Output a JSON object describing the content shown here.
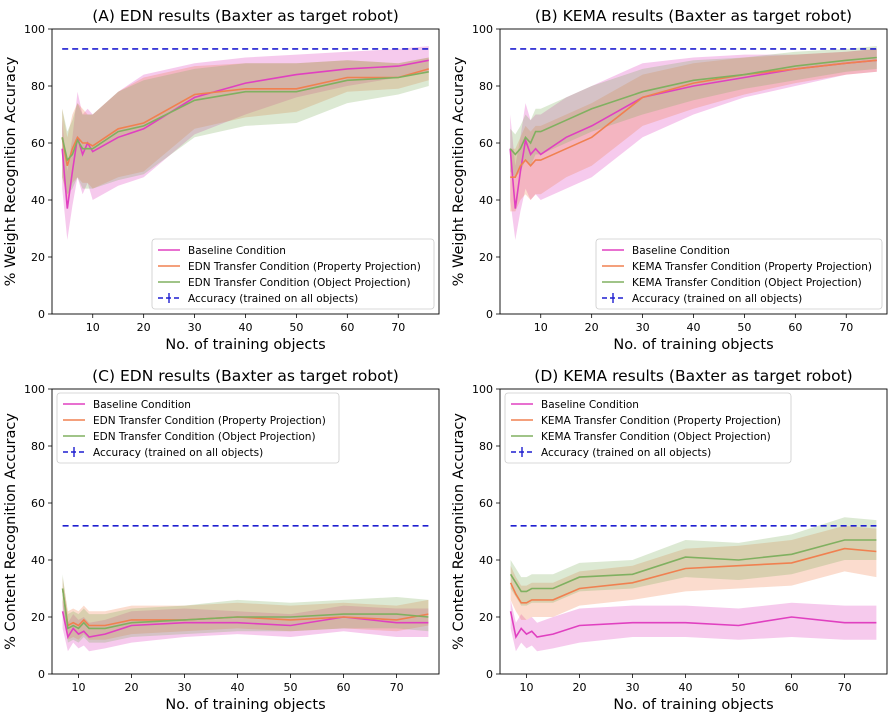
{
  "chart_data": [
    {
      "type": "line",
      "panel": "A",
      "title": "(A) EDN results (Baxter as target robot)",
      "xlabel": "No. of training objects",
      "ylabel": "% Weight Recognition Accuracy",
      "xlim": [
        2,
        78
      ],
      "ylim": [
        0,
        100
      ],
      "xticks": [
        10,
        20,
        30,
        40,
        50,
        60,
        70
      ],
      "yticks": [
        0,
        20,
        40,
        60,
        80,
        100
      ],
      "legend_position": "lower-right",
      "x": [
        4,
        5,
        6,
        7,
        8,
        9,
        10,
        15,
        20,
        30,
        40,
        50,
        60,
        70,
        76
      ],
      "reference": {
        "name": "Accuracy (trained on all objects)",
        "value": 93,
        "x_range": [
          4,
          76
        ],
        "color": "#1f1fd0"
      },
      "series": [
        {
          "name": "Baseline Condition",
          "color": "#e040c0",
          "values": [
            58,
            37,
            50,
            62,
            56,
            60,
            57,
            62,
            65,
            76,
            81,
            84,
            86,
            87,
            89
          ],
          "lower": [
            44,
            26,
            38,
            48,
            42,
            46,
            40,
            45,
            48,
            63,
            70,
            76,
            80,
            83,
            85
          ],
          "upper": [
            68,
            50,
            62,
            78,
            70,
            72,
            70,
            78,
            84,
            88,
            90,
            91,
            92,
            93,
            94
          ]
        },
        {
          "name": "EDN Transfer Condition (Property Projection)",
          "color": "#f08050",
          "values": [
            62,
            52,
            58,
            62,
            60,
            60,
            59,
            65,
            67,
            77,
            79,
            79,
            83,
            83,
            86
          ],
          "lower": [
            48,
            40,
            46,
            48,
            46,
            46,
            44,
            48,
            50,
            65,
            69,
            71,
            78,
            79,
            82
          ],
          "upper": [
            72,
            62,
            70,
            74,
            72,
            70,
            70,
            78,
            83,
            87,
            88,
            88,
            89,
            88,
            90
          ]
        },
        {
          "name": "EDN Transfer Condition (Object Projection)",
          "color": "#80b060",
          "values": [
            62,
            54,
            56,
            61,
            58,
            58,
            58,
            64,
            66,
            75,
            78,
            78,
            82,
            83,
            85
          ],
          "lower": [
            48,
            42,
            44,
            48,
            44,
            44,
            44,
            47,
            49,
            62,
            66,
            67,
            74,
            77,
            80
          ],
          "upper": [
            72,
            64,
            68,
            74,
            70,
            70,
            70,
            78,
            82,
            86,
            88,
            88,
            89,
            88,
            90
          ]
        }
      ]
    },
    {
      "type": "line",
      "panel": "B",
      "title": "(B) KEMA results (Baxter as target robot)",
      "xlabel": "No. of training objects",
      "ylabel": "% Weight Recognition Accuracy",
      "xlim": [
        2,
        78
      ],
      "ylim": [
        0,
        100
      ],
      "xticks": [
        10,
        20,
        30,
        40,
        50,
        60,
        70
      ],
      "yticks": [
        0,
        20,
        40,
        60,
        80,
        100
      ],
      "legend_position": "lower-right",
      "x": [
        4,
        5,
        6,
        7,
        8,
        9,
        10,
        15,
        20,
        30,
        40,
        50,
        60,
        70,
        76
      ],
      "reference": {
        "name": "Accuracy (trained on all objects)",
        "value": 93,
        "x_range": [
          4,
          76
        ],
        "color": "#1f1fd0"
      },
      "series": [
        {
          "name": "Baseline Condition",
          "color": "#e040c0",
          "values": [
            58,
            37,
            50,
            61,
            56,
            58,
            56,
            62,
            66,
            76,
            80,
            83,
            86,
            88,
            89
          ],
          "lower": [
            40,
            26,
            36,
            44,
            40,
            42,
            40,
            44,
            48,
            62,
            70,
            76,
            80,
            84,
            85
          ],
          "upper": [
            70,
            52,
            62,
            74,
            68,
            70,
            70,
            76,
            80,
            88,
            90,
            91,
            91,
            92,
            93
          ]
        },
        {
          "name": "KEMA Transfer Condition (Property Projection)",
          "color": "#f08050",
          "values": [
            48,
            48,
            52,
            54,
            52,
            54,
            54,
            58,
            62,
            76,
            81,
            84,
            86,
            88,
            89
          ],
          "lower": [
            36,
            36,
            40,
            42,
            40,
            42,
            42,
            48,
            52,
            66,
            72,
            77,
            81,
            84,
            85
          ],
          "upper": [
            58,
            58,
            62,
            66,
            64,
            66,
            66,
            70,
            74,
            84,
            88,
            90,
            91,
            92,
            93
          ]
        },
        {
          "name": "KEMA Transfer Condition (Object Projection)",
          "color": "#80b060",
          "values": [
            58,
            56,
            58,
            62,
            60,
            64,
            64,
            68,
            72,
            78,
            82,
            84,
            87,
            89,
            90
          ],
          "lower": [
            50,
            48,
            50,
            54,
            52,
            56,
            56,
            60,
            64,
            70,
            75,
            79,
            82,
            85,
            86
          ],
          "upper": [
            65,
            63,
            66,
            70,
            68,
            72,
            72,
            76,
            80,
            86,
            89,
            90,
            92,
            93,
            94
          ]
        }
      ]
    },
    {
      "type": "line",
      "panel": "C",
      "title": "(C) EDN results (Baxter as target robot)",
      "xlabel": "No. of training objects",
      "ylabel": "% Content Recognition Accuracy",
      "xlim": [
        5,
        78
      ],
      "ylim": [
        0,
        100
      ],
      "xticks": [
        10,
        20,
        30,
        40,
        50,
        60,
        70
      ],
      "yticks": [
        0,
        20,
        40,
        60,
        80,
        100
      ],
      "legend_position": "upper-left",
      "x": [
        7,
        8,
        9,
        10,
        11,
        12,
        15,
        20,
        30,
        40,
        50,
        60,
        70,
        76
      ],
      "reference": {
        "name": "Accuracy (trained on all objects)",
        "value": 52,
        "x_range": [
          7,
          76
        ],
        "color": "#1f1fd0"
      },
      "series": [
        {
          "name": "Baseline Condition",
          "color": "#e040c0",
          "values": [
            22,
            13,
            16,
            14,
            15,
            13,
            14,
            17,
            18,
            18,
            17,
            20,
            18,
            18
          ],
          "lower": [
            16,
            8,
            11,
            9,
            10,
            8,
            9,
            11,
            13,
            14,
            13,
            15,
            13,
            13
          ],
          "upper": [
            26,
            18,
            21,
            19,
            20,
            18,
            19,
            22,
            23,
            22,
            21,
            24,
            23,
            23
          ]
        },
        {
          "name": "EDN Transfer Condition (Property Projection)",
          "color": "#f08050",
          "values": [
            30,
            17,
            18,
            17,
            19,
            17,
            17,
            19,
            19,
            20,
            19,
            20,
            19,
            21
          ],
          "lower": [
            25,
            12,
            13,
            12,
            14,
            12,
            12,
            14,
            15,
            16,
            15,
            16,
            15,
            17
          ],
          "upper": [
            34,
            22,
            23,
            22,
            24,
            22,
            22,
            24,
            24,
            25,
            24,
            25,
            24,
            26
          ]
        },
        {
          "name": "EDN Transfer Condition (Object Projection)",
          "color": "#80b060",
          "values": [
            30,
            16,
            17,
            16,
            18,
            16,
            16,
            18,
            19,
            20,
            20,
            21,
            21,
            20
          ],
          "lower": [
            24,
            11,
            12,
            11,
            13,
            11,
            11,
            13,
            14,
            15,
            15,
            16,
            16,
            15
          ],
          "upper": [
            35,
            21,
            22,
            21,
            23,
            21,
            21,
            23,
            24,
            26,
            25,
            26,
            27,
            26
          ]
        }
      ]
    },
    {
      "type": "line",
      "panel": "D",
      "title": "(D) KEMA results (Baxter as target robot)",
      "xlabel": "No. of training objects",
      "ylabel": "% Content Recognition Accuracy",
      "xlim": [
        5,
        78
      ],
      "ylim": [
        0,
        100
      ],
      "xticks": [
        10,
        20,
        30,
        40,
        50,
        60,
        70
      ],
      "yticks": [
        0,
        20,
        40,
        60,
        80,
        100
      ],
      "legend_position": "upper-left",
      "x": [
        7,
        8,
        9,
        10,
        11,
        12,
        15,
        20,
        30,
        40,
        50,
        60,
        70,
        76
      ],
      "reference": {
        "name": "Accuracy (trained on all objects)",
        "value": 52,
        "x_range": [
          7,
          76
        ],
        "color": "#1f1fd0"
      },
      "series": [
        {
          "name": "Baseline Condition",
          "color": "#e040c0",
          "values": [
            22,
            13,
            16,
            14,
            15,
            13,
            14,
            17,
            18,
            18,
            17,
            20,
            18,
            18
          ],
          "lower": [
            16,
            8,
            11,
            9,
            10,
            8,
            9,
            11,
            13,
            13,
            12,
            13,
            12,
            12
          ],
          "upper": [
            26,
            18,
            21,
            19,
            20,
            18,
            20,
            23,
            24,
            24,
            23,
            25,
            24,
            24
          ]
        },
        {
          "name": "KEMA Transfer Condition (Property Projection)",
          "color": "#f08050",
          "values": [
            32,
            28,
            25,
            25,
            26,
            26,
            26,
            30,
            32,
            37,
            38,
            39,
            44,
            43
          ],
          "lower": [
            26,
            22,
            19,
            19,
            20,
            20,
            20,
            24,
            26,
            29,
            30,
            31,
            36,
            34
          ],
          "upper": [
            38,
            34,
            31,
            31,
            32,
            32,
            32,
            36,
            38,
            44,
            45,
            47,
            52,
            51
          ]
        },
        {
          "name": "KEMA Transfer Condition (Object Projection)",
          "color": "#80b060",
          "values": [
            35,
            32,
            29,
            29,
            30,
            30,
            30,
            34,
            35,
            41,
            40,
            42,
            47,
            47
          ],
          "lower": [
            30,
            27,
            24,
            24,
            25,
            25,
            25,
            29,
            30,
            34,
            33,
            35,
            40,
            40
          ],
          "upper": [
            40,
            37,
            34,
            34,
            35,
            35,
            35,
            39,
            40,
            47,
            46,
            49,
            55,
            54
          ]
        }
      ]
    }
  ]
}
